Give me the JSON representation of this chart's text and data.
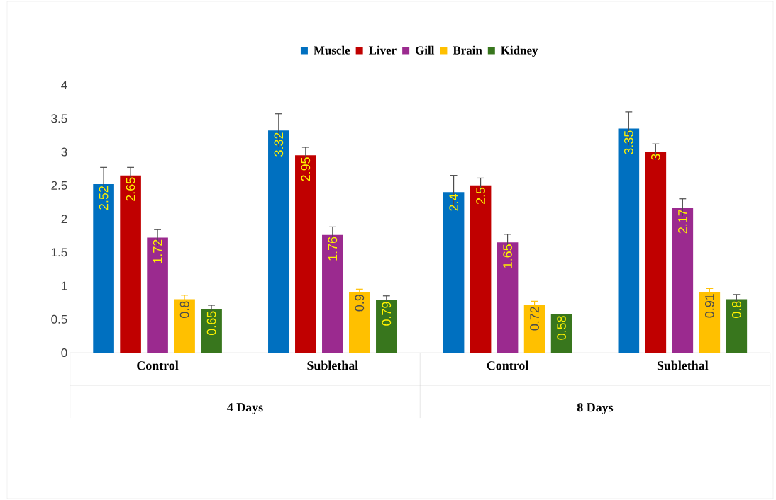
{
  "chart_data": {
    "type": "bar",
    "categories": [
      "Control",
      "Sublethal",
      "Control",
      "Sublethal"
    ],
    "annotations": [
      "4 Days",
      "8 Days"
    ],
    "series": [
      {
        "name": "Muscle",
        "color": "#0070c0",
        "values": [
          2.52,
          3.32,
          2.4,
          3.35
        ],
        "errors": [
          0.25,
          0.25,
          0.25,
          0.25
        ]
      },
      {
        "name": "Liver",
        "color": "#c00000",
        "values": [
          2.65,
          2.95,
          2.5,
          3
        ],
        "errors": [
          0.12,
          0.12,
          0.11,
          0.12
        ]
      },
      {
        "name": "Gill",
        "color": "#9b2a8f",
        "values": [
          1.72,
          1.76,
          1.65,
          2.17
        ],
        "errors": [
          0.12,
          0.12,
          0.12,
          0.13
        ]
      },
      {
        "name": "Brain",
        "color": "#ffc000",
        "values": [
          0.8,
          0.9,
          0.72,
          0.91
        ],
        "errors": [
          0.06,
          0.05,
          0.05,
          0.05
        ]
      },
      {
        "name": "Kidney",
        "color": "#38761d",
        "values": [
          0.65,
          0.79,
          0.58,
          0.8
        ],
        "errors": [
          0.06,
          0.06,
          null,
          0.07
        ]
      }
    ],
    "ylim": [
      0,
      4
    ],
    "yticks": [
      0,
      0.5,
      1,
      1.5,
      2,
      2.5,
      3,
      3.5,
      4
    ],
    "data_labels": true,
    "grid": false,
    "legend": "top"
  }
}
